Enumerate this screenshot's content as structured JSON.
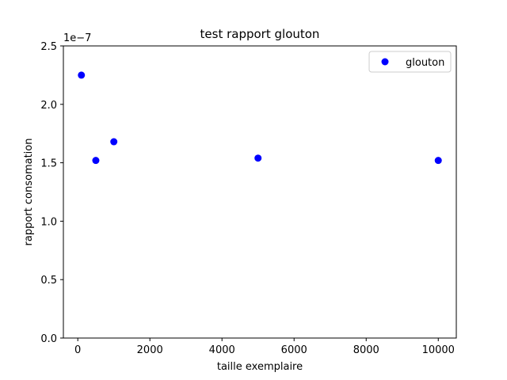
{
  "chart_data": {
    "type": "scatter",
    "title": "test rapport glouton",
    "xlabel": "taille exemplaire",
    "ylabel": "rapport consomation",
    "offset_text": "1e−7",
    "xlim": [
      -400,
      10500
    ],
    "ylim": [
      0.0,
      2.5
    ],
    "y_multiplier": 1e-07,
    "xticks": [
      0,
      2000,
      4000,
      6000,
      8000,
      10000
    ],
    "xtick_labels": [
      "0",
      "2000",
      "4000",
      "6000",
      "8000",
      "10000"
    ],
    "yticks": [
      0.0,
      0.5,
      1.0,
      1.5,
      2.0,
      2.5
    ],
    "ytick_labels": [
      "0.0",
      "0.5",
      "1.0",
      "1.5",
      "2.0",
      "2.5"
    ],
    "grid": false,
    "legend_position": "top-right",
    "series": [
      {
        "name": "glouton",
        "color": "#0000ff",
        "marker": "circle",
        "x": [
          100,
          500,
          1000,
          5000,
          10000
        ],
        "y": [
          2.25,
          1.52,
          1.68,
          1.54,
          1.52
        ]
      }
    ]
  }
}
